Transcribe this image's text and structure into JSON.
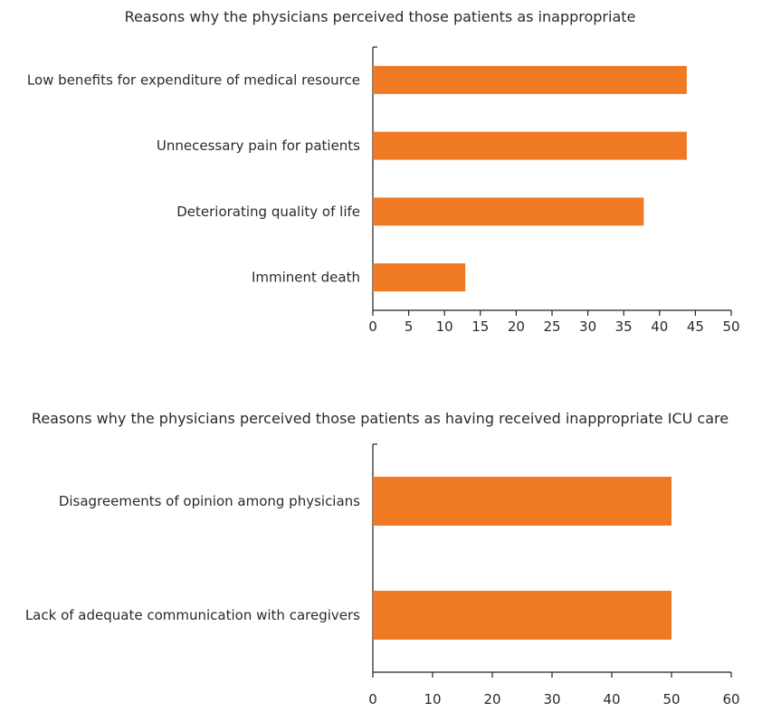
{
  "chart_data": [
    {
      "type": "bar",
      "orientation": "horizontal",
      "title": "Reasons why the physicians perceived those patients as inappropriate",
      "categories": [
        "Low benefits for expenditure of medical resource",
        "Unnecessary pain for patients",
        "Deteriorating quality of life",
        "Imminent death"
      ],
      "values": [
        43.8,
        43.8,
        37.8,
        12.9
      ],
      "xlim": [
        0,
        50
      ],
      "xticks": [
        0,
        5,
        10,
        15,
        20,
        25,
        30,
        35,
        40,
        45,
        50
      ],
      "grid": false,
      "legend": "none",
      "bar_color": "#f07a23"
    },
    {
      "type": "bar",
      "orientation": "horizontal",
      "title": "Reasons why the physicians perceived those patients as having received inappropriate ICU care",
      "categories": [
        "Disagreements of opinion among physicians",
        "Lack of adequate communication with caregivers"
      ],
      "values": [
        50,
        50
      ],
      "xlim": [
        0,
        60
      ],
      "xticks": [
        0,
        10,
        20,
        30,
        40,
        50,
        60
      ],
      "grid": false,
      "legend": "none",
      "bar_color": "#f07a23"
    }
  ]
}
